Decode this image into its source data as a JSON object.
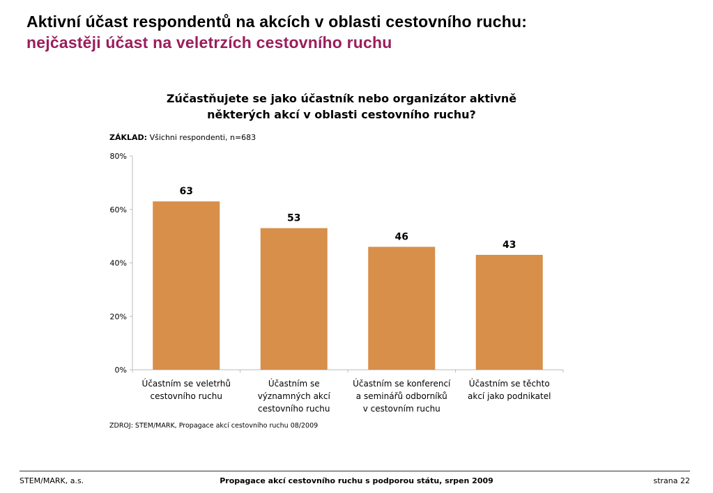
{
  "title": "Aktivní účast respondentů na akcích v oblasti cestovního ruchu:",
  "subtitle": "nejčastěji účast na veletrzích cestovního ruchu",
  "question_lines": [
    "Zúčastňujete se jako účastník nebo organizátor aktivně",
    "některých akcí v oblasti cestovního ruchu?"
  ],
  "base_label": "ZÁKLAD:",
  "base_text": "Všichni respondenti, n=683",
  "source": "ZDROJ: STEM/MARK, Propagace akcí cestovního ruchu 08/2009",
  "footer": {
    "left": "STEM/MARK, a.s.",
    "center": "Propagace akcí cestovního ruchu s podporou státu, srpen 2009",
    "right": "strana 22"
  },
  "colors": {
    "bar": "#d78f4a",
    "subtitle": "#9b1d5c"
  },
  "chart_data": {
    "type": "bar",
    "title": "Zúčastňujete se jako účastník nebo organizátor aktivně některých akcí v oblasti cestovního ruchu?",
    "categories": [
      [
        "Účastním se veletrhů",
        "cestovního ruchu"
      ],
      [
        "Účastním se",
        "významných akcí",
        "cestovního ruchu"
      ],
      [
        "Účastním se konferencí",
        "a seminářů odborníků",
        "v cestovním ruchu"
      ],
      [
        "Účastním se těchto",
        "akcí jako podnikatel"
      ]
    ],
    "values": [
      63,
      53,
      46,
      43
    ],
    "ylim": [
      0,
      80
    ],
    "yticks": [
      "0%",
      "20%",
      "40%",
      "60%",
      "80%"
    ],
    "ytick_values": [
      0,
      20,
      40,
      60,
      80
    ],
    "xlabel": "",
    "ylabel": "",
    "grid": false,
    "legend": "none"
  }
}
